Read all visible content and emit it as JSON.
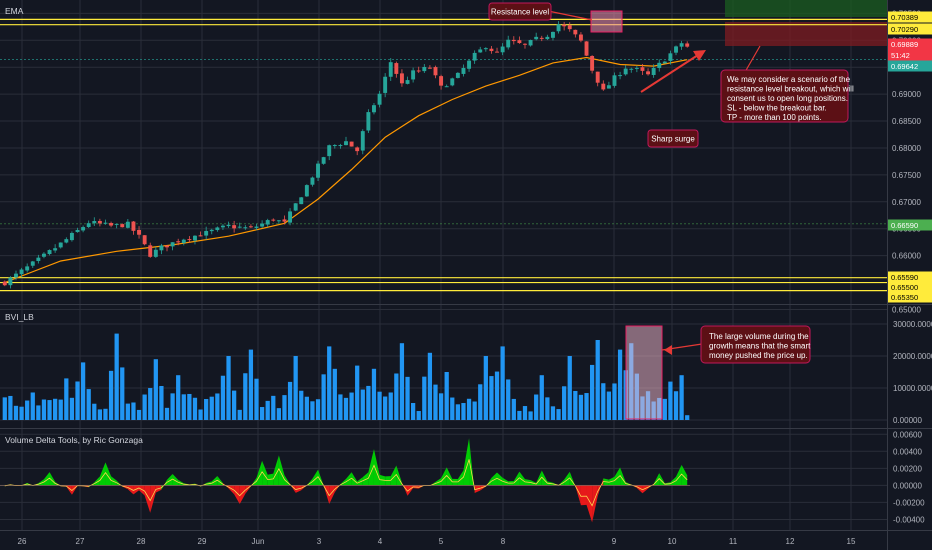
{
  "panes": {
    "price_title": "EMA",
    "volume_title": "BVI_LB",
    "delta_title": "Volume Delta Tools, by Ric Gonzaga"
  },
  "price_axis": {
    "ticks": [
      "0.70500",
      "0.70000",
      "0.69500",
      "0.69000",
      "0.68500",
      "0.68000",
      "0.67500",
      "0.67000",
      "0.66500",
      "0.66000",
      "0.65500",
      "0.65000"
    ],
    "tags": [
      {
        "text": "0.70389",
        "bg": "#ffeb3b",
        "fg": "#000000"
      },
      {
        "text": "0.70290",
        "bg": "#ffeb3b",
        "fg": "#000000"
      },
      {
        "text": "0.69889",
        "bg": "#f23645",
        "fg": "#ffffff"
      },
      {
        "text": "51:42",
        "bg": "#f23645",
        "fg": "#ffffff"
      },
      {
        "text": "0.69642",
        "bg": "#26a69a",
        "fg": "#ffffff"
      },
      {
        "text": "0.66590",
        "bg": "#4caf50",
        "fg": "#ffffff"
      },
      {
        "text": "0.65590",
        "bg": "#ffeb3b",
        "fg": "#000000"
      },
      {
        "text": "0.65500",
        "bg": "#ffeb3b",
        "fg": "#000000"
      },
      {
        "text": "0.65350",
        "bg": "#ffeb3b",
        "fg": "#000000"
      }
    ]
  },
  "volume_axis": {
    "ticks": [
      "30000.00000",
      "20000.00000",
      "10000.00000",
      "0.00000"
    ]
  },
  "delta_axis": {
    "ticks": [
      "0.00600",
      "0.00400",
      "0.00200",
      "0.00000",
      "-0.00200",
      "-0.00400"
    ]
  },
  "time_axis": {
    "ticks": [
      "26",
      "27",
      "28",
      "29",
      "Jun",
      "3",
      "4",
      "5",
      "8",
      "9",
      "10",
      "11",
      "12",
      "15"
    ]
  },
  "annotations": {
    "resistance": "Resistance level",
    "surge": "Sharp surge",
    "scenario": [
      "We may consider a scenario of the",
      "resistance level breakout, which will",
      "consent us to open long positions.",
      "SL - below the breakout bar.",
      "TP - more than 100 points."
    ],
    "volume_note": [
      "The large volume during the",
      "growth means that the smart",
      "money pushed the price up."
    ]
  },
  "colors": {
    "background": "#131722",
    "grid": "#2a2e39",
    "up": "#26a69a",
    "down": "#ef5350",
    "ema": "#ff9800",
    "level": "#ffeb3b",
    "volume": "#2196f3",
    "delta_up": "#00e000",
    "delta_down": "#ff1a1a",
    "note_bg": "#5c1015",
    "note_border": "#c2185b"
  },
  "chart_data": [
    {
      "type": "candlestick",
      "title": "EMA",
      "x_categories": [
        "26",
        "27",
        "28",
        "29",
        "Jun",
        "3",
        "4",
        "5",
        "8",
        "9",
        "10",
        "11",
        "12",
        "15"
      ],
      "ylim": [
        0.6525,
        0.706
      ],
      "horizontal_levels": [
        0.70389,
        0.7029,
        0.6559,
        0.655,
        0.6535
      ],
      "markers": [
        {
          "label": "close",
          "value": 0.69889
        },
        {
          "label": "ema",
          "value": 0.69642
        },
        {
          "label": "level",
          "value": 0.6659
        }
      ],
      "path": [
        [
          0,
          0.655
        ],
        [
          6,
          0.6592
        ],
        [
          10,
          0.6622
        ],
        [
          15,
          0.6662
        ],
        [
          19,
          0.6655
        ],
        [
          22,
          0.6658
        ],
        [
          24,
          0.6635
        ],
        [
          26,
          0.6602
        ],
        [
          28,
          0.6615
        ],
        [
          32,
          0.6632
        ],
        [
          36,
          0.6642
        ],
        [
          40,
          0.6655
        ],
        [
          44,
          0.665
        ],
        [
          48,
          0.6668
        ],
        [
          50,
          0.666
        ],
        [
          54,
          0.673
        ],
        [
          58,
          0.6802
        ],
        [
          61,
          0.6812
        ],
        [
          63,
          0.6795
        ],
        [
          65,
          0.6862
        ],
        [
          67,
          0.69
        ],
        [
          69,
          0.696
        ],
        [
          71,
          0.6918
        ],
        [
          73,
          0.694
        ],
        [
          76,
          0.695
        ],
        [
          78,
          0.6912
        ],
        [
          81,
          0.6935
        ],
        [
          84,
          0.6972
        ],
        [
          86,
          0.699
        ],
        [
          88,
          0.6975
        ],
        [
          90,
          0.6998
        ],
        [
          93,
          0.699
        ],
        [
          95,
          0.7002
        ],
        [
          97,
          0.701
        ],
        [
          99,
          0.703
        ],
        [
          101,
          0.7018
        ],
        [
          103,
          0.6998
        ],
        [
          105,
          0.6945
        ],
        [
          107,
          0.6905
        ],
        [
          109,
          0.693
        ],
        [
          111,
          0.695
        ],
        [
          113,
          0.6945
        ],
        [
          115,
          0.6935
        ],
        [
          117,
          0.6955
        ],
        [
          119,
          0.6975
        ],
        [
          121,
          0.6995
        ],
        [
          122,
          0.6988
        ]
      ],
      "ema_path": [
        [
          0,
          0.655
        ],
        [
          10,
          0.659
        ],
        [
          20,
          0.6608
        ],
        [
          30,
          0.662
        ],
        [
          40,
          0.6636
        ],
        [
          50,
          0.666
        ],
        [
          56,
          0.6705
        ],
        [
          62,
          0.676
        ],
        [
          68,
          0.682
        ],
        [
          74,
          0.686
        ],
        [
          80,
          0.689
        ],
        [
          86,
          0.6915
        ],
        [
          92,
          0.6935
        ],
        [
          98,
          0.6958
        ],
        [
          104,
          0.6968
        ],
        [
          110,
          0.6955
        ],
        [
          116,
          0.6952
        ],
        [
          122,
          0.6964
        ]
      ]
    },
    {
      "type": "bar",
      "title": "BVI_LB",
      "ylim": [
        0,
        35000
      ],
      "ticks": [
        0,
        10000,
        20000,
        30000
      ],
      "peaks": [
        [
          4,
          6000
        ],
        [
          11,
          13000
        ],
        [
          14,
          18000
        ],
        [
          20,
          27000
        ],
        [
          27,
          19000
        ],
        [
          31,
          14000
        ],
        [
          40,
          20000
        ],
        [
          44,
          22000
        ],
        [
          52,
          20000
        ],
        [
          58,
          23000
        ],
        [
          63,
          17000
        ],
        [
          66,
          16000
        ],
        [
          71,
          24000
        ],
        [
          76,
          21000
        ],
        [
          79,
          15000
        ],
        [
          86,
          20000
        ],
        [
          89,
          23000
        ],
        [
          96,
          14000
        ],
        [
          101,
          20000
        ],
        [
          106,
          25000
        ],
        [
          110,
          22000
        ],
        [
          112,
          24000
        ],
        [
          115,
          9000
        ],
        [
          119,
          12000
        ],
        [
          121,
          14000
        ]
      ],
      "highlight_range": [
        104,
        113
      ]
    },
    {
      "type": "area",
      "title": "Volume Delta Tools, by Ric Gonzaga",
      "ylim": [
        -0.005,
        0.0065
      ],
      "ticks": [
        -0.004,
        -0.002,
        0,
        0.002,
        0.004,
        0.006
      ],
      "spikes": [
        [
          8,
          0.0018
        ],
        [
          12,
          -0.001
        ],
        [
          18,
          0.003
        ],
        [
          23,
          -0.0008
        ],
        [
          26,
          -0.003
        ],
        [
          30,
          0.0012
        ],
        [
          38,
          0.0014
        ],
        [
          42,
          -0.0022
        ],
        [
          46,
          0.0028
        ],
        [
          49,
          0.0034
        ],
        [
          52,
          -0.0011
        ],
        [
          56,
          0.0022
        ],
        [
          58,
          -0.0024
        ],
        [
          62,
          0.0016
        ],
        [
          66,
          0.004
        ],
        [
          70,
          0.0024
        ],
        [
          72,
          -0.0016
        ],
        [
          79,
          0.002
        ],
        [
          83,
          0.0065
        ],
        [
          84,
          -0.0032
        ],
        [
          88,
          0.0018
        ],
        [
          92,
          0.0014
        ],
        [
          96,
          0.0016
        ],
        [
          101,
          0.0021
        ],
        [
          103,
          -0.002
        ],
        [
          105,
          -0.0042
        ],
        [
          107,
          0.0014
        ],
        [
          110,
          0.0019
        ],
        [
          114,
          -0.001
        ],
        [
          117,
          0.0015
        ],
        [
          121,
          0.0026
        ]
      ]
    }
  ]
}
